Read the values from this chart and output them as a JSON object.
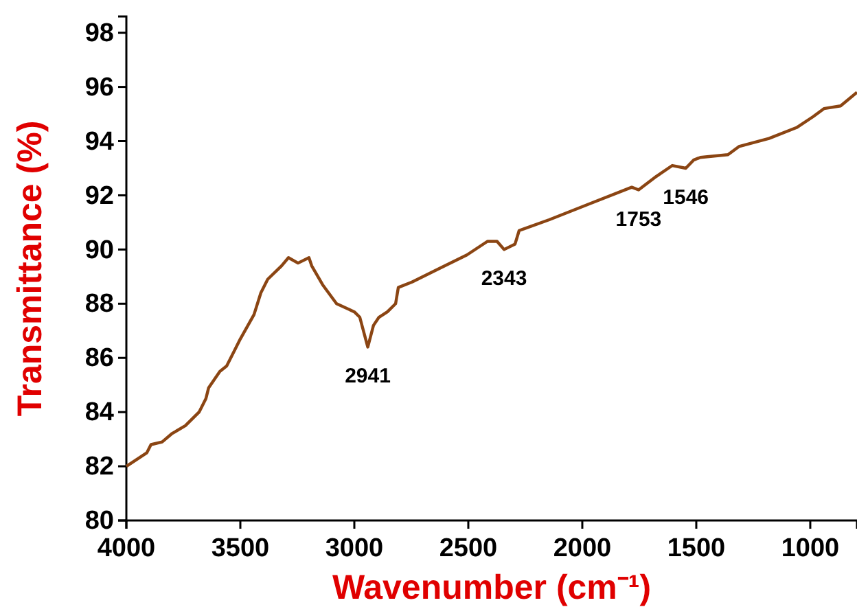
{
  "chart_data": {
    "type": "line",
    "xlabel": "Wavenumber (cm⁻¹)",
    "ylabel": "Transmittance (%)",
    "xlim": [
      4000,
      795
    ],
    "xticks": [
      4000,
      3500,
      3000,
      2500,
      2000,
      1500,
      1000
    ],
    "ylim": [
      80,
      98.6
    ],
    "yticks": [
      80,
      82,
      84,
      86,
      88,
      90,
      92,
      94,
      96,
      98
    ],
    "grid": false,
    "marker": "none",
    "line_style": "solid",
    "series": [
      {
        "color": "#8b4513",
        "x": [
          4000,
          3910,
          3892,
          3843,
          3801,
          3741,
          3681,
          3651,
          3639,
          3590,
          3560,
          3500,
          3440,
          3410,
          3380,
          3319,
          3289,
          3247,
          3199,
          3187,
          3139,
          3078,
          3000,
          2976,
          2941,
          2916,
          2892,
          2855,
          2819,
          2807,
          2747,
          2627,
          2506,
          2416,
          2374,
          2343,
          2295,
          2277,
          2145,
          1964,
          1783,
          1753,
          1675,
          1605,
          1546,
          1512,
          1482,
          1361,
          1313,
          1181,
          1060,
          988,
          940,
          867,
          795
        ],
        "values": [
          82.0,
          82.5,
          82.8,
          82.9,
          83.2,
          83.5,
          84.0,
          84.5,
          84.9,
          85.5,
          85.7,
          86.7,
          87.6,
          88.4,
          88.9,
          89.4,
          89.7,
          89.5,
          89.7,
          89.4,
          88.7,
          88.0,
          87.7,
          87.5,
          86.4,
          87.2,
          87.5,
          87.7,
          88.0,
          88.6,
          88.8,
          89.3,
          89.8,
          90.3,
          90.3,
          90.0,
          90.2,
          90.7,
          91.1,
          91.7,
          92.3,
          92.2,
          92.7,
          93.1,
          93.0,
          93.3,
          93.4,
          93.5,
          93.8,
          94.1,
          94.5,
          94.9,
          95.2,
          95.3,
          95.8
        ]
      }
    ],
    "annotations": [
      {
        "text": "2941",
        "x": 2941,
        "y": 86.4
      },
      {
        "text": "2343",
        "x": 2343,
        "y": 90.0
      },
      {
        "text": "1753",
        "x": 1753,
        "y": 92.2
      },
      {
        "text": "1546",
        "x": 1546,
        "y": 93.0
      }
    ]
  }
}
